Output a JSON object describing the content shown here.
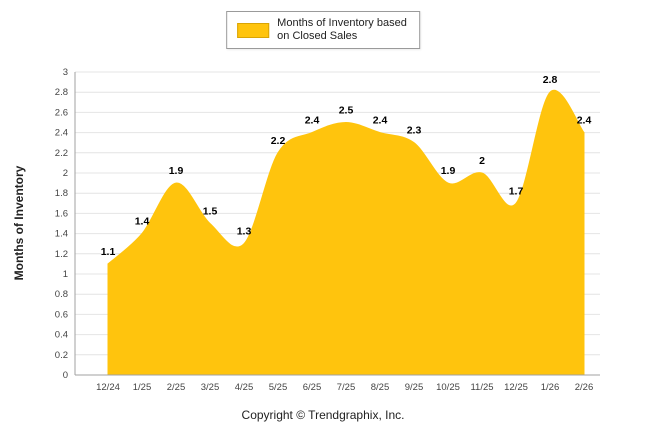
{
  "chart_data": {
    "type": "area",
    "categories": [
      "12/24",
      "1/25",
      "2/25",
      "3/25",
      "4/25",
      "5/25",
      "6/25",
      "7/25",
      "8/25",
      "9/25",
      "10/25",
      "11/25",
      "12/25",
      "1/26",
      "2/26"
    ],
    "values": [
      1.1,
      1.4,
      1.9,
      1.5,
      1.3,
      2.2,
      2.4,
      2.5,
      2.4,
      2.3,
      1.9,
      2,
      1.7,
      2.8,
      2.4
    ],
    "value_labels": [
      "1.1",
      "1.4",
      "1.9",
      "1.5",
      "1.3",
      "2.2",
      "2.4",
      "2.5",
      "2.4",
      "2.3",
      "1.9",
      "2",
      "1.7",
      "2.8",
      "2.4"
    ],
    "legend": "Months of Inventory based on Closed Sales",
    "legend_lines": [
      "Months of Inventory based",
      "on Closed Sales"
    ],
    "legend_position": "top",
    "xlabel": "",
    "ylabel": "Months of Inventory",
    "ylim": [
      0,
      3
    ],
    "ytick_step": 0.2,
    "ytick_labels": [
      "0",
      "0.2",
      "0.4",
      "0.6",
      "0.8",
      "1",
      "1.2",
      "1.4",
      "1.6",
      "1.8",
      "2",
      "2.2",
      "2.4",
      "2.6",
      "2.8",
      "3"
    ],
    "grid": true,
    "area_color": "#FFC40D",
    "grid_color": "#e4e4e4",
    "axis_color": "#a0a0a0",
    "tick_text_color": "#444444",
    "label_text_color": "#000000"
  },
  "footer": {
    "copyright": "Copyright © Trendgraphix, Inc."
  }
}
